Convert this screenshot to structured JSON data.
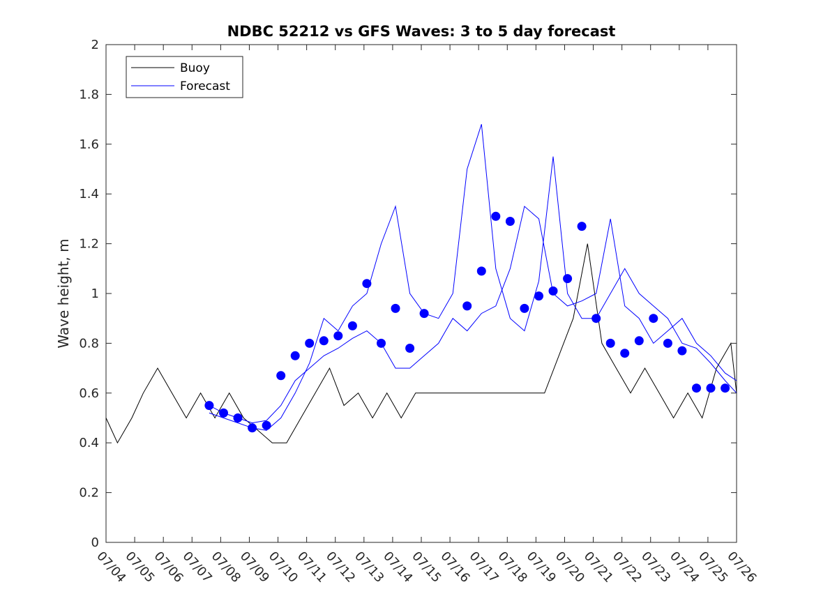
{
  "chart_data": {
    "type": "line",
    "title": "NDBC 52212 vs GFS Waves: 3 to 5 day forecast",
    "xlabel": "",
    "ylabel": "Wave height, m",
    "xlim": [
      "07/04",
      "07/26"
    ],
    "ylim": [
      0,
      2
    ],
    "x_tick_labels": [
      "07/04",
      "07/05",
      "07/06",
      "07/07",
      "07/08",
      "07/09",
      "07/10",
      "07/11",
      "07/12",
      "07/13",
      "07/14",
      "07/15",
      "07/16",
      "07/17",
      "07/18",
      "07/19",
      "07/20",
      "07/21",
      "07/22",
      "07/23",
      "07/24",
      "07/25",
      "07/26"
    ],
    "y_tick_labels": [
      "0",
      "0.2",
      "0.4",
      "0.6",
      "0.8",
      "1",
      "1.2",
      "1.4",
      "1.6",
      "1.8",
      "2"
    ],
    "grid": false,
    "legend": {
      "position": "top-left",
      "entries": [
        "Buoy",
        "Forecast"
      ]
    },
    "colors": {
      "buoy": "#000000",
      "forecast": "#0000ff"
    },
    "series": [
      {
        "name": "Buoy",
        "x": [
          0,
          0.4,
          0.9,
          1.3,
          1.8,
          2.3,
          2.8,
          3.3,
          3.8,
          4.3,
          4.8,
          5.3,
          5.8,
          6.3,
          6.8,
          7.3,
          7.8,
          8.3,
          8.8,
          9.3,
          9.8,
          10.3,
          10.8,
          11.3,
          11.8,
          12.3,
          12.8,
          13.3,
          13.8,
          14.3,
          14.8,
          15.3,
          15.8,
          16.3,
          16.8,
          17.3,
          17.8,
          18.3,
          18.8,
          19.3,
          19.8,
          20.3,
          20.8,
          21.3,
          21.8,
          22
        ],
        "y": [
          0.5,
          0.4,
          0.5,
          0.6,
          0.7,
          0.6,
          0.5,
          0.6,
          0.5,
          0.6,
          0.5,
          0.45,
          0.4,
          0.4,
          0.5,
          0.6,
          0.7,
          0.55,
          0.6,
          0.5,
          0.6,
          0.5,
          0.6,
          0.6,
          0.6,
          0.6,
          0.6,
          0.6,
          0.6,
          0.6,
          0.6,
          0.6,
          0.75,
          0.9,
          1.2,
          0.8,
          0.7,
          0.6,
          0.7,
          0.6,
          0.5,
          0.6,
          0.5,
          0.7,
          0.8,
          0.6
        ]
      },
      {
        "name": "Forecast",
        "x": [
          3.6,
          4.1,
          4.6,
          5.1,
          5.6,
          6.1,
          6.6,
          7.1,
          7.6,
          8.1,
          8.6,
          9.1,
          9.6,
          10.1,
          10.6,
          11.1,
          11.6,
          12.1,
          12.6,
          13.1,
          13.6,
          14.1,
          14.6,
          15.1,
          15.6,
          16.1,
          16.6,
          17.1,
          17.6,
          18.1,
          18.6,
          19.1,
          19.6,
          20.1,
          20.6,
          21.1,
          21.6,
          22
        ],
        "y": [
          0.55,
          0.52,
          0.5,
          0.48,
          0.49,
          0.55,
          0.65,
          0.7,
          0.75,
          0.78,
          0.82,
          0.85,
          0.8,
          0.7,
          0.7,
          0.75,
          0.8,
          0.9,
          0.85,
          0.92,
          0.95,
          1.1,
          1.35,
          1.3,
          1.0,
          0.95,
          0.97,
          1.0,
          1.3,
          0.95,
          0.9,
          0.8,
          0.85,
          0.9,
          0.8,
          0.75,
          0.68,
          0.65
        ]
      },
      {
        "name": "Forecast",
        "x": [
          3.6,
          4.1,
          4.6,
          5.1,
          5.6,
          6.1,
          6.6,
          7.1,
          7.6,
          8.1,
          8.6,
          9.1,
          9.6,
          10.1,
          10.6,
          11.1,
          11.6,
          12.1,
          12.6,
          13.1,
          13.6,
          14.1,
          14.6,
          15.1,
          15.6,
          16.1,
          16.6,
          17.1,
          17.6,
          18.1,
          18.6,
          19.1,
          19.6,
          20.1,
          20.6,
          21.1,
          21.6,
          22
        ],
        "y": [
          0.52,
          0.5,
          0.48,
          0.46,
          0.45,
          0.5,
          0.6,
          0.72,
          0.9,
          0.85,
          0.95,
          1.0,
          1.2,
          1.35,
          1.0,
          0.92,
          0.9,
          1.0,
          1.5,
          1.68,
          1.1,
          0.9,
          0.85,
          1.05,
          1.55,
          1.0,
          0.9,
          0.9,
          1.0,
          1.1,
          1.0,
          0.95,
          0.9,
          0.8,
          0.78,
          0.72,
          0.65,
          0.6
        ]
      }
    ],
    "markers": {
      "name": "Forecast",
      "x": [
        3.6,
        4.1,
        4.6,
        5.1,
        5.6,
        6.1,
        6.6,
        7.1,
        7.6,
        8.1,
        8.6,
        9.1,
        9.6,
        10.1,
        10.6,
        11.1,
        12.6,
        13.1,
        13.6,
        14.1,
        14.6,
        15.1,
        15.6,
        16.1,
        16.6,
        17.1,
        17.6,
        18.1,
        18.6,
        19.1,
        19.6,
        20.1,
        20.6,
        21.1,
        21.6
      ],
      "y": [
        0.55,
        0.52,
        0.5,
        0.46,
        0.47,
        0.67,
        0.75,
        0.8,
        0.81,
        0.83,
        0.87,
        1.04,
        0.8,
        0.94,
        0.78,
        0.92,
        0.95,
        1.09,
        1.31,
        1.29,
        0.94,
        0.99,
        1.01,
        1.06,
        1.27,
        0.9,
        0.8,
        0.76,
        0.81,
        0.9,
        0.8,
        0.77,
        0.62,
        0.62,
        0.62
      ]
    }
  }
}
